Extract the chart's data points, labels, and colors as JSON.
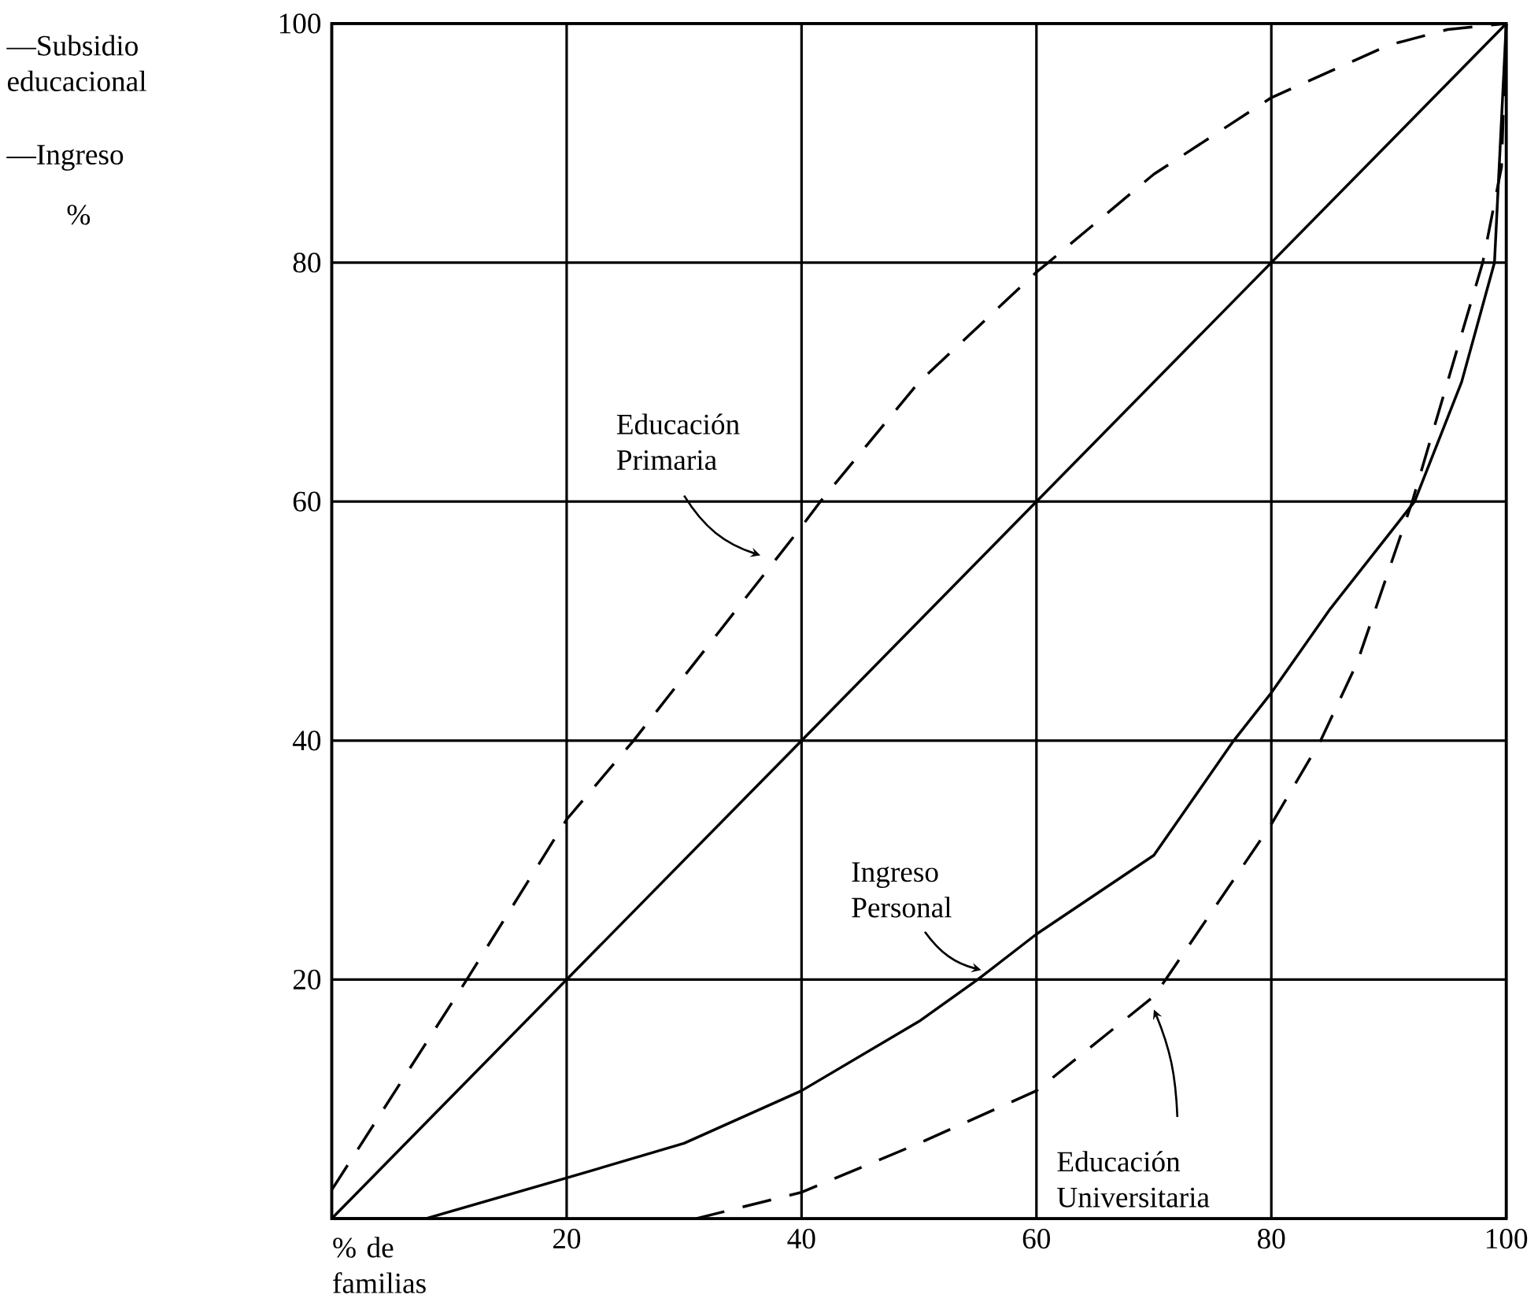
{
  "chart_data": {
    "type": "line",
    "xlabel": "% de familias",
    "annotations": [
      "—Subsidio educacional",
      "—Ingreso",
      "%"
    ],
    "xlim": [
      0,
      100
    ],
    "ylim": [
      0,
      100
    ],
    "xticks": [
      {
        "value": 0,
        "label": null
      },
      20,
      40,
      60,
      80,
      100
    ],
    "yticks": [
      {
        "value": 0,
        "label": null
      },
      20,
      40,
      60,
      80,
      100
    ],
    "grid": true,
    "legend": false,
    "marker": "none",
    "series": [
      {
        "color": "#000000",
        "line_style": "solid",
        "x": [
          0,
          100
        ],
        "values": [
          0,
          100
        ]
      },
      {
        "name": "Educación Primaria",
        "color": "#000000",
        "line_style": "dashed",
        "x": [
          0,
          11.5,
          20,
          25.7,
          40,
          41.6,
          50,
          60,
          61,
          70,
          80,
          90,
          95,
          100
        ],
        "values": [
          2.4,
          20,
          33.4,
          40,
          57.9,
          60,
          70,
          79.2,
          80,
          87.4,
          93.8,
          98.2,
          99.5,
          100
        ]
      },
      {
        "name": "Ingreso Personal",
        "color": "#000000",
        "line_style": "solid",
        "x": [
          0,
          8,
          20,
          30,
          40,
          50,
          55,
          60,
          70,
          76.8,
          80,
          85,
          92.2,
          96.2,
          99,
          100
        ],
        "values": [
          0,
          0,
          3.4,
          6.3,
          10.7,
          16.5,
          20,
          23.8,
          30.4,
          40,
          44,
          51,
          60,
          70,
          80,
          100
        ]
      },
      {
        "name": "Educación Universitaria",
        "color": "#000000",
        "line_style": "dashed",
        "x": [
          31,
          40,
          50,
          60,
          70,
          71,
          80,
          84.2,
          87.3,
          92,
          98,
          99.6,
          100
        ],
        "values": [
          0,
          2.2,
          6.3,
          10.7,
          18.6,
          20,
          33,
          40,
          46.5,
          60,
          80,
          88,
          100
        ]
      }
    ]
  }
}
